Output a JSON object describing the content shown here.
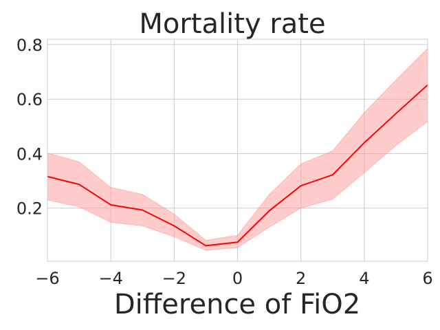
{
  "chart_data": {
    "type": "line",
    "title": "Mortality rate",
    "xlabel": "Difference of FiO2",
    "ylabel": "",
    "xlim": [
      -6,
      6
    ],
    "ylim": [
      0.005,
      0.82
    ],
    "x_ticks": [
      -6,
      -4,
      -2,
      0,
      2,
      4,
      6
    ],
    "x_tick_labels": [
      "−6",
      "−4",
      "−2",
      "0",
      "2",
      "4",
      "6"
    ],
    "y_ticks": [
      0.2,
      0.4,
      0.6,
      0.8
    ],
    "y_tick_labels": [
      "0.2",
      "0.4",
      "0.6",
      "0.8"
    ],
    "grid": true,
    "series": [
      {
        "name": "Mortality rate",
        "color": "#ff0000",
        "band_color": "#ff9999",
        "x": [
          -6,
          -5,
          -4,
          -3,
          -2,
          -1,
          0,
          1,
          2,
          3,
          4,
          5,
          6
        ],
        "values": [
          0.316,
          0.287,
          0.212,
          0.193,
          0.135,
          0.062,
          0.075,
          0.19,
          0.282,
          0.322,
          0.44,
          0.547,
          0.652
        ],
        "lower": [
          0.23,
          0.205,
          0.148,
          0.135,
          0.095,
          0.045,
          0.055,
          0.13,
          0.2,
          0.233,
          0.33,
          0.43,
          0.518
        ],
        "upper": [
          0.402,
          0.37,
          0.276,
          0.25,
          0.178,
          0.082,
          0.1,
          0.25,
          0.362,
          0.41,
          0.55,
          0.67,
          0.786
        ]
      }
    ]
  }
}
